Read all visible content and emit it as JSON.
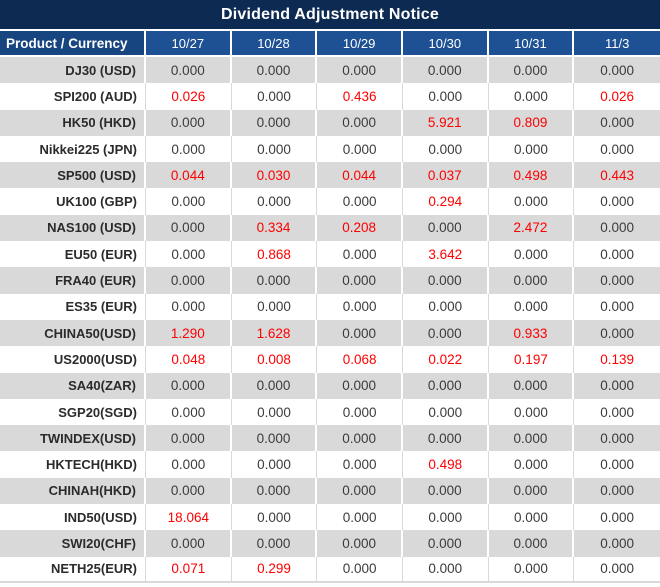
{
  "title": "Dividend Adjustment Notice",
  "colors": {
    "title_bar_navy": "#0d2a52",
    "corner_header_blue": "#17457f",
    "date_header_blue": "#1d5193",
    "row_alt_gray": "#d9d9d9",
    "row_base_white": "#ffffff",
    "value_text_dark": "#3b3b3b",
    "value_text_red": "#fe0000",
    "header_text": "#ffffff"
  },
  "chart_data": {
    "type": "table",
    "title": "Dividend Adjustment Notice",
    "corner_header": "Product / Currency",
    "columns": [
      "10/27",
      "10/28",
      "10/29",
      "10/30",
      "10/31",
      "11/3"
    ],
    "zero_value": "0.000",
    "highlight_rule": "non-zero dividend values rendered in red",
    "rows": [
      {
        "product": "DJ30 (USD)",
        "values": [
          "0.000",
          "0.000",
          "0.000",
          "0.000",
          "0.000",
          "0.000"
        ]
      },
      {
        "product": "SPI200 (AUD)",
        "values": [
          "0.026",
          "0.000",
          "0.436",
          "0.000",
          "0.000",
          "0.026"
        ]
      },
      {
        "product": "HK50 (HKD)",
        "values": [
          "0.000",
          "0.000",
          "0.000",
          "5.921",
          "0.809",
          "0.000"
        ]
      },
      {
        "product": "Nikkei225 (JPN)",
        "values": [
          "0.000",
          "0.000",
          "0.000",
          "0.000",
          "0.000",
          "0.000"
        ]
      },
      {
        "product": "SP500 (USD)",
        "values": [
          "0.044",
          "0.030",
          "0.044",
          "0.037",
          "0.498",
          "0.443"
        ]
      },
      {
        "product": "UK100 (GBP)",
        "values": [
          "0.000",
          "0.000",
          "0.000",
          "0.294",
          "0.000",
          "0.000"
        ]
      },
      {
        "product": "NAS100 (USD)",
        "values": [
          "0.000",
          "0.334",
          "0.208",
          "0.000",
          "2.472",
          "0.000"
        ]
      },
      {
        "product": "EU50 (EUR)",
        "values": [
          "0.000",
          "0.868",
          "0.000",
          "3.642",
          "0.000",
          "0.000"
        ]
      },
      {
        "product": "FRA40 (EUR)",
        "values": [
          "0.000",
          "0.000",
          "0.000",
          "0.000",
          "0.000",
          "0.000"
        ]
      },
      {
        "product": "ES35 (EUR)",
        "values": [
          "0.000",
          "0.000",
          "0.000",
          "0.000",
          "0.000",
          "0.000"
        ]
      },
      {
        "product": "CHINA50(USD)",
        "values": [
          "1.290",
          "1.628",
          "0.000",
          "0.000",
          "0.933",
          "0.000"
        ]
      },
      {
        "product": "US2000(USD)",
        "values": [
          "0.048",
          "0.008",
          "0.068",
          "0.022",
          "0.197",
          "0.139"
        ]
      },
      {
        "product": "SA40(ZAR)",
        "values": [
          "0.000",
          "0.000",
          "0.000",
          "0.000",
          "0.000",
          "0.000"
        ]
      },
      {
        "product": "SGP20(SGD)",
        "values": [
          "0.000",
          "0.000",
          "0.000",
          "0.000",
          "0.000",
          "0.000"
        ]
      },
      {
        "product": "TWINDEX(USD)",
        "values": [
          "0.000",
          "0.000",
          "0.000",
          "0.000",
          "0.000",
          "0.000"
        ]
      },
      {
        "product": "HKTECH(HKD)",
        "values": [
          "0.000",
          "0.000",
          "0.000",
          "0.498",
          "0.000",
          "0.000"
        ]
      },
      {
        "product": "CHINAH(HKD)",
        "values": [
          "0.000",
          "0.000",
          "0.000",
          "0.000",
          "0.000",
          "0.000"
        ]
      },
      {
        "product": "IND50(USD)",
        "values": [
          "18.064",
          "0.000",
          "0.000",
          "0.000",
          "0.000",
          "0.000"
        ]
      },
      {
        "product": "SWI20(CHF)",
        "values": [
          "0.000",
          "0.000",
          "0.000",
          "0.000",
          "0.000",
          "0.000"
        ]
      },
      {
        "product": "NETH25(EUR)",
        "values": [
          "0.071",
          "0.299",
          "0.000",
          "0.000",
          "0.000",
          "0.000"
        ]
      }
    ]
  }
}
